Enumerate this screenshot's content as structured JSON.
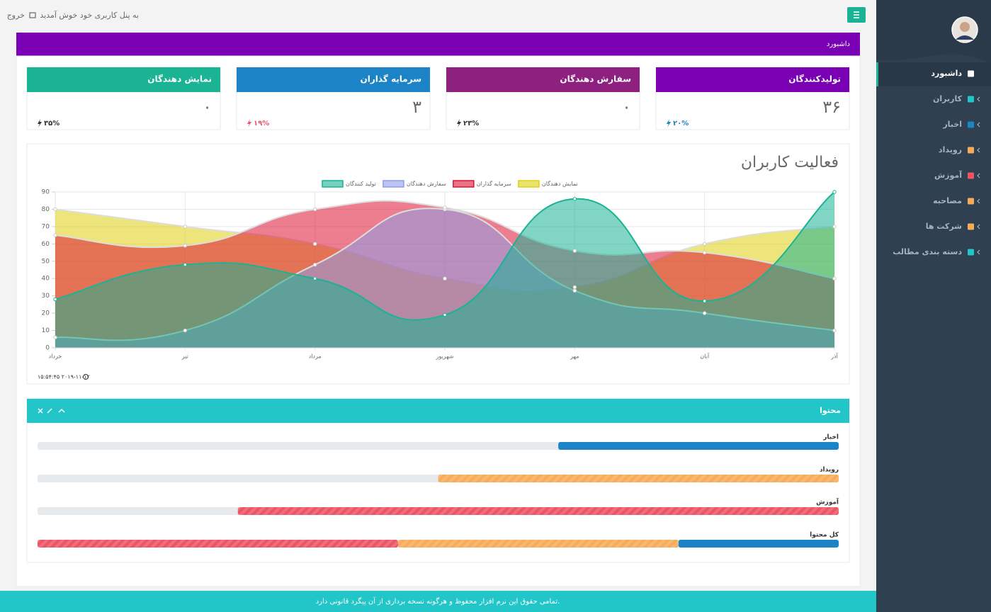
{
  "header": {
    "welcome": "به پنل کاربری خود خوش آمدید",
    "logout": "خروج"
  },
  "page_title": "داشبورد",
  "sidebar": {
    "menu": [
      "داشبورد",
      "کاربران",
      "اخبار",
      "رویداد",
      "آموزش",
      "مصاحبه",
      "شرکت ها",
      "دسته بندی مطالب"
    ]
  },
  "stats": [
    {
      "title": "تولیدکنندگان",
      "value": "۳۶",
      "change": "۲۰%",
      "color": "#7a00b3",
      "change_color": "#1c84c6"
    },
    {
      "title": "سفارش دهندگان",
      "value": "۰",
      "change": "۲۳%",
      "color": "#8e2180",
      "change_color": "#333333"
    },
    {
      "title": "سرمایه گذاران",
      "value": "۳",
      "change": "۱۹%",
      "color": "#1c84c6",
      "change_color": "#ed5565"
    },
    {
      "title": "نمایش دهندگان",
      "value": "۰",
      "change": "۳۵%",
      "color": "#1ab394",
      "change_color": "#333333"
    }
  ],
  "chart_data": {
    "type": "area",
    "title": "فعالیت کاربران",
    "categories": [
      "خرداد",
      "تیر",
      "مرداد",
      "شهریور",
      "مهر",
      "آبان",
      "آذر"
    ],
    "series": [
      {
        "name": "تولید کنندگان",
        "color": "#1ab394",
        "values": [
          28,
          48,
          40,
          19,
          86,
          27,
          90
        ]
      },
      {
        "name": "سفارش دهندگان",
        "color": "#8f9de8",
        "values": [
          6,
          10,
          48,
          80,
          33,
          20,
          10
        ]
      },
      {
        "name": "سرمایه گذاران",
        "color": "#dc1434",
        "values": [
          65,
          59,
          80,
          81,
          56,
          55,
          40
        ]
      },
      {
        "name": "نمایش دهندگان",
        "color": "#ded010",
        "values": [
          80,
          70,
          60,
          40,
          35,
          60,
          70
        ]
      }
    ],
    "ylim": [
      0,
      90
    ],
    "yticks": [
      0,
      10,
      20,
      30,
      40,
      50,
      60,
      70,
      80,
      90
    ],
    "grid": true,
    "timestamp": "۱۵:۵۴:۴۵ ۲۰۱۹-۱۱-۱۲"
  },
  "content_panel": {
    "title": "محتوا",
    "bars": [
      {
        "label": "اخبار",
        "segments": [
          {
            "value": 35,
            "color": "#1c84c6"
          }
        ]
      },
      {
        "label": "رویداد",
        "segments": [
          {
            "value": 50,
            "color": "#f8ac59"
          }
        ]
      },
      {
        "label": "آموزش",
        "segments": [
          {
            "value": 75,
            "color": "#ed5565"
          }
        ]
      },
      {
        "label": "کل محتوا",
        "segments": [
          {
            "value": 20,
            "color": "#1c84c6"
          },
          {
            "value": 35,
            "color": "#f8ac59"
          },
          {
            "value": 45,
            "color": "#ed5565"
          }
        ]
      }
    ]
  },
  "footer": "تمامی حقوق این نرم افزار محفوظ و هرگونه نسخه برداری از آن پیگرد قانونی دارد."
}
